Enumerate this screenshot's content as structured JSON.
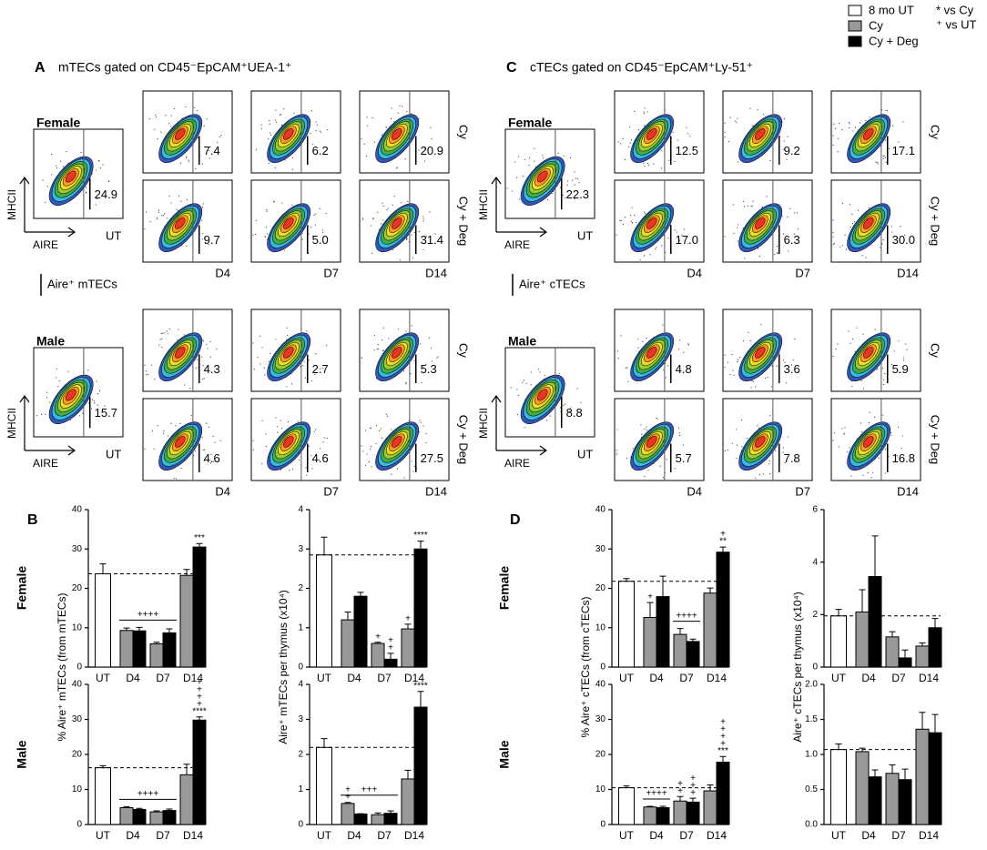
{
  "legend": {
    "entries": [
      {
        "name": "8 mo UT",
        "color": "#ffffff"
      },
      {
        "name": "Cy",
        "color": "#999999"
      },
      {
        "name": "Cy + Deg",
        "color": "#000000"
      }
    ],
    "notes": [
      "* vs Cy",
      "⁺ vs UT"
    ]
  },
  "flow_labels": {
    "y": "MHCII",
    "x": "AIRE",
    "control": "UT",
    "days": [
      "D4",
      "D7",
      "D14"
    ],
    "treatments": [
      "Cy",
      "Cy + Deg"
    ]
  },
  "flow_panels": [
    {
      "letter": "A",
      "title": "mTECs gated on CD45⁻EpCAM⁺UEA-1⁺",
      "scale_label": "Aire⁺ mTECs",
      "groups": [
        {
          "label": "Female",
          "ut": "24.9",
          "rows": [
            [
              "7.4",
              "6.2",
              "20.9"
            ],
            [
              "9.7",
              "5.0",
              "31.4"
            ]
          ]
        },
        {
          "label": "Male",
          "ut": "15.7",
          "rows": [
            [
              "4.3",
              "2.7",
              "5.3"
            ],
            [
              "4.6",
              "4.6",
              "27.5"
            ]
          ]
        }
      ]
    },
    {
      "letter": "C",
      "title": "cTECs gated on CD45⁻EpCAM⁺Ly-51⁺",
      "scale_label": "Aire⁺ cTECs",
      "groups": [
        {
          "label": "Female",
          "ut": "22.3",
          "rows": [
            [
              "12.5",
              "9.2",
              "17.1"
            ],
            [
              "17.0",
              "6.3",
              "30.0"
            ]
          ]
        },
        {
          "label": "Male",
          "ut": "8.8",
          "rows": [
            [
              "4.8",
              "3.6",
              "5.9"
            ],
            [
              "5.7",
              "7.8",
              "16.8"
            ]
          ]
        }
      ]
    }
  ],
  "bar_panels": [
    {
      "letter": "B",
      "rows": [
        "Female",
        "Male"
      ]
    },
    {
      "letter": "D",
      "rows": [
        "Female",
        "Male"
      ]
    }
  ],
  "chart_data": [
    {
      "type": "bar",
      "ylabel": "% Aire⁺ mTECs (from mTECs)",
      "categories": [
        "UT",
        "D4",
        "D7",
        "D14"
      ],
      "series": [
        {
          "name": "8 mo UT",
          "color": "#ffffff",
          "values": [
            23.7,
            null,
            null,
            null
          ],
          "errors": [
            2.5,
            null,
            null,
            null
          ]
        },
        {
          "name": "Cy",
          "color": "#999999",
          "values": [
            null,
            9.3,
            5.9,
            23.3
          ],
          "errors": [
            null,
            0.6,
            0.4,
            1.5
          ]
        },
        {
          "name": "Cy + Deg",
          "color": "#000000",
          "values": [
            null,
            9.2,
            8.7,
            30.5
          ],
          "errors": [
            null,
            0.9,
            1.0,
            0.9
          ]
        }
      ],
      "ylim": [
        0,
        40
      ],
      "yticks": [
        0,
        10,
        20,
        30,
        40
      ],
      "annotations": [
        {
          "text": [
            "++++"
          ],
          "span": [
            "D4",
            "D7"
          ]
        },
        {
          "text": [
            "***"
          ],
          "category": "D14",
          "series": "Cy + Deg"
        }
      ]
    },
    {
      "type": "bar",
      "ylabel": "Aire⁺ mTECs per thymus (x10⁴)",
      "categories": [
        "UT",
        "D4",
        "D7",
        "D14"
      ],
      "series": [
        {
          "name": "8 mo UT",
          "color": "#ffffff",
          "values": [
            2.85,
            null,
            null,
            null
          ],
          "errors": [
            0.45,
            null,
            null,
            null
          ]
        },
        {
          "name": "Cy",
          "color": "#999999",
          "values": [
            null,
            1.2,
            0.6,
            0.97
          ],
          "errors": [
            null,
            0.2,
            0.03,
            0.12
          ]
        },
        {
          "name": "Cy + Deg",
          "color": "#000000",
          "values": [
            null,
            1.8,
            0.2,
            3.0
          ],
          "errors": [
            null,
            0.1,
            0.15,
            0.2
          ]
        }
      ],
      "ylim": [
        0,
        4
      ],
      "yticks": [
        0,
        1,
        2,
        3,
        4
      ],
      "annotations": [
        {
          "text": [
            "+"
          ],
          "category": "D7",
          "series": "Cy"
        },
        {
          "text": [
            "+",
            "+"
          ],
          "category": "D7",
          "series": "Cy + Deg"
        },
        {
          "text": [
            "+"
          ],
          "category": "D14",
          "series": "Cy"
        },
        {
          "text": [
            "****"
          ],
          "category": "D14",
          "series": "Cy + Deg"
        }
      ]
    },
    {
      "type": "bar",
      "categories": [
        "UT",
        "D4",
        "D7",
        "D14"
      ],
      "series": [
        {
          "name": "8 mo UT",
          "color": "#ffffff",
          "values": [
            16.2,
            null,
            null,
            null
          ],
          "errors": [
            0.6,
            null,
            null,
            null
          ]
        },
        {
          "name": "Cy",
          "color": "#999999",
          "values": [
            null,
            4.8,
            3.6,
            14.2
          ],
          "errors": [
            null,
            0.3,
            0.3,
            3.0
          ]
        },
        {
          "name": "Cy + Deg",
          "color": "#000000",
          "values": [
            null,
            4.3,
            4.0,
            29.8
          ],
          "errors": [
            null,
            0.3,
            0.4,
            0.9
          ]
        }
      ],
      "ylim": [
        0,
        40
      ],
      "yticks": [
        0,
        10,
        20,
        30,
        40
      ],
      "annotations": [
        {
          "text": [
            "++++"
          ],
          "span": [
            "D4",
            "D7"
          ]
        },
        {
          "text": [
            "+",
            "+",
            "+",
            "+",
            "****"
          ],
          "category": "D14",
          "series": "Cy + Deg"
        }
      ]
    },
    {
      "type": "bar",
      "categories": [
        "UT",
        "D4",
        "D7",
        "D14"
      ],
      "series": [
        {
          "name": "8 mo UT",
          "color": "#ffffff",
          "values": [
            2.2,
            null,
            null,
            null
          ],
          "errors": [
            0.25,
            null,
            null,
            null
          ]
        },
        {
          "name": "Cy",
          "color": "#999999",
          "values": [
            null,
            0.6,
            0.28,
            1.3
          ],
          "errors": [
            null,
            0.03,
            0.05,
            0.25
          ]
        },
        {
          "name": "Cy + Deg",
          "color": "#000000",
          "values": [
            null,
            0.3,
            0.32,
            3.35
          ],
          "errors": [
            null,
            0.01,
            0.07,
            0.45
          ]
        }
      ],
      "ylim": [
        0,
        4
      ],
      "yticks": [
        0,
        1,
        2,
        3,
        4
      ],
      "annotations": [
        {
          "text": [
            "+",
            "+"
          ],
          "category": "D4",
          "series": "Cy"
        },
        {
          "text": [
            "+++"
          ],
          "span": [
            "D4",
            "D7"
          ]
        },
        {
          "text": [
            "****"
          ],
          "category": "D14",
          "series": "Cy + Deg"
        }
      ]
    },
    {
      "type": "bar",
      "ylabel": "% Aire⁺ cTECs (from cTECs)",
      "categories": [
        "UT",
        "D4",
        "D7",
        "D14"
      ],
      "series": [
        {
          "name": "8 mo UT",
          "color": "#ffffff",
          "values": [
            21.8,
            null,
            null,
            null
          ],
          "errors": [
            0.7,
            null,
            null,
            null
          ]
        },
        {
          "name": "Cy",
          "color": "#999999",
          "values": [
            null,
            12.6,
            8.3,
            18.8
          ],
          "errors": [
            null,
            3.8,
            1.5,
            1.3
          ]
        },
        {
          "name": "Cy + Deg",
          "color": "#000000",
          "values": [
            null,
            17.9,
            6.5,
            29.2
          ],
          "errors": [
            null,
            5.2,
            0.6,
            1.3
          ]
        }
      ],
      "ylim": [
        0,
        40
      ],
      "yticks": [
        0,
        10,
        20,
        30,
        40
      ],
      "annotations": [
        {
          "text": [
            "+"
          ],
          "category": "D4",
          "series": "Cy"
        },
        {
          "text": [
            "++++"
          ],
          "span": [
            "D7",
            "D7"
          ]
        },
        {
          "text": [
            "+",
            "**"
          ],
          "category": "D14",
          "series": "Cy + Deg"
        }
      ]
    },
    {
      "type": "bar",
      "ylabel": "Aire⁺ cTECs per thymus (x10⁴)",
      "categories": [
        "UT",
        "D4",
        "D7",
        "D14"
      ],
      "series": [
        {
          "name": "8 mo UT",
          "color": "#ffffff",
          "values": [
            1.95,
            null,
            null,
            null
          ],
          "errors": [
            0.25,
            null,
            null,
            null
          ]
        },
        {
          "name": "Cy",
          "color": "#999999",
          "values": [
            null,
            2.1,
            1.15,
            0.8
          ],
          "errors": [
            null,
            0.85,
            0.2,
            0.12
          ]
        },
        {
          "name": "Cy + Deg",
          "color": "#000000",
          "values": [
            null,
            3.45,
            0.35,
            1.5
          ],
          "errors": [
            null,
            1.55,
            0.3,
            0.35
          ]
        }
      ],
      "ylim": [
        0,
        6
      ],
      "yticks": [
        0,
        2,
        4,
        6
      ],
      "annotations": []
    },
    {
      "type": "bar",
      "categories": [
        "UT",
        "D4",
        "D7",
        "D14"
      ],
      "series": [
        {
          "name": "8 mo UT",
          "color": "#ffffff",
          "values": [
            10.5,
            null,
            null,
            null
          ],
          "errors": [
            0.5,
            null,
            null,
            null
          ]
        },
        {
          "name": "Cy",
          "color": "#999999",
          "values": [
            null,
            5.0,
            6.7,
            9.6
          ],
          "errors": [
            null,
            0.2,
            1.3,
            1.7
          ]
        },
        {
          "name": "Cy + Deg",
          "color": "#000000",
          "values": [
            null,
            4.8,
            6.4,
            17.8
          ],
          "errors": [
            null,
            0.4,
            1.1,
            1.6
          ]
        }
      ],
      "ylim": [
        0,
        40
      ],
      "yticks": [
        0,
        10,
        20,
        30,
        40
      ],
      "annotations": [
        {
          "text": [
            "++++"
          ],
          "span": [
            "D4",
            "D4"
          ]
        },
        {
          "text": [
            "+",
            "+"
          ],
          "category": "D7",
          "series": "Cy"
        },
        {
          "text": [
            "+",
            "+",
            "+"
          ],
          "category": "D7",
          "series": "Cy + Deg"
        },
        {
          "text": [
            "+",
            "+",
            "+",
            "+",
            "***"
          ],
          "category": "D14",
          "series": "Cy + Deg"
        }
      ]
    },
    {
      "type": "bar",
      "categories": [
        "UT",
        "D4",
        "D7",
        "D14"
      ],
      "series": [
        {
          "name": "8 mo UT",
          "color": "#ffffff",
          "values": [
            1.07,
            null,
            null,
            null
          ],
          "errors": [
            0.08,
            null,
            null,
            null
          ]
        },
        {
          "name": "Cy",
          "color": "#999999",
          "values": [
            null,
            1.04,
            0.73,
            1.36
          ],
          "errors": [
            null,
            0.05,
            0.12,
            0.24
          ]
        },
        {
          "name": "Cy + Deg",
          "color": "#000000",
          "values": [
            null,
            0.68,
            0.64,
            1.31
          ],
          "errors": [
            null,
            0.1,
            0.15,
            0.26
          ]
        }
      ],
      "ylim": [
        0,
        2
      ],
      "yticks": [
        {
          "value": 0,
          "label": "0.0"
        },
        0.5,
        {
          "value": 1,
          "label": "1.0"
        },
        1.5,
        {
          "value": 2,
          "label": "2.0"
        }
      ],
      "annotations": []
    }
  ]
}
